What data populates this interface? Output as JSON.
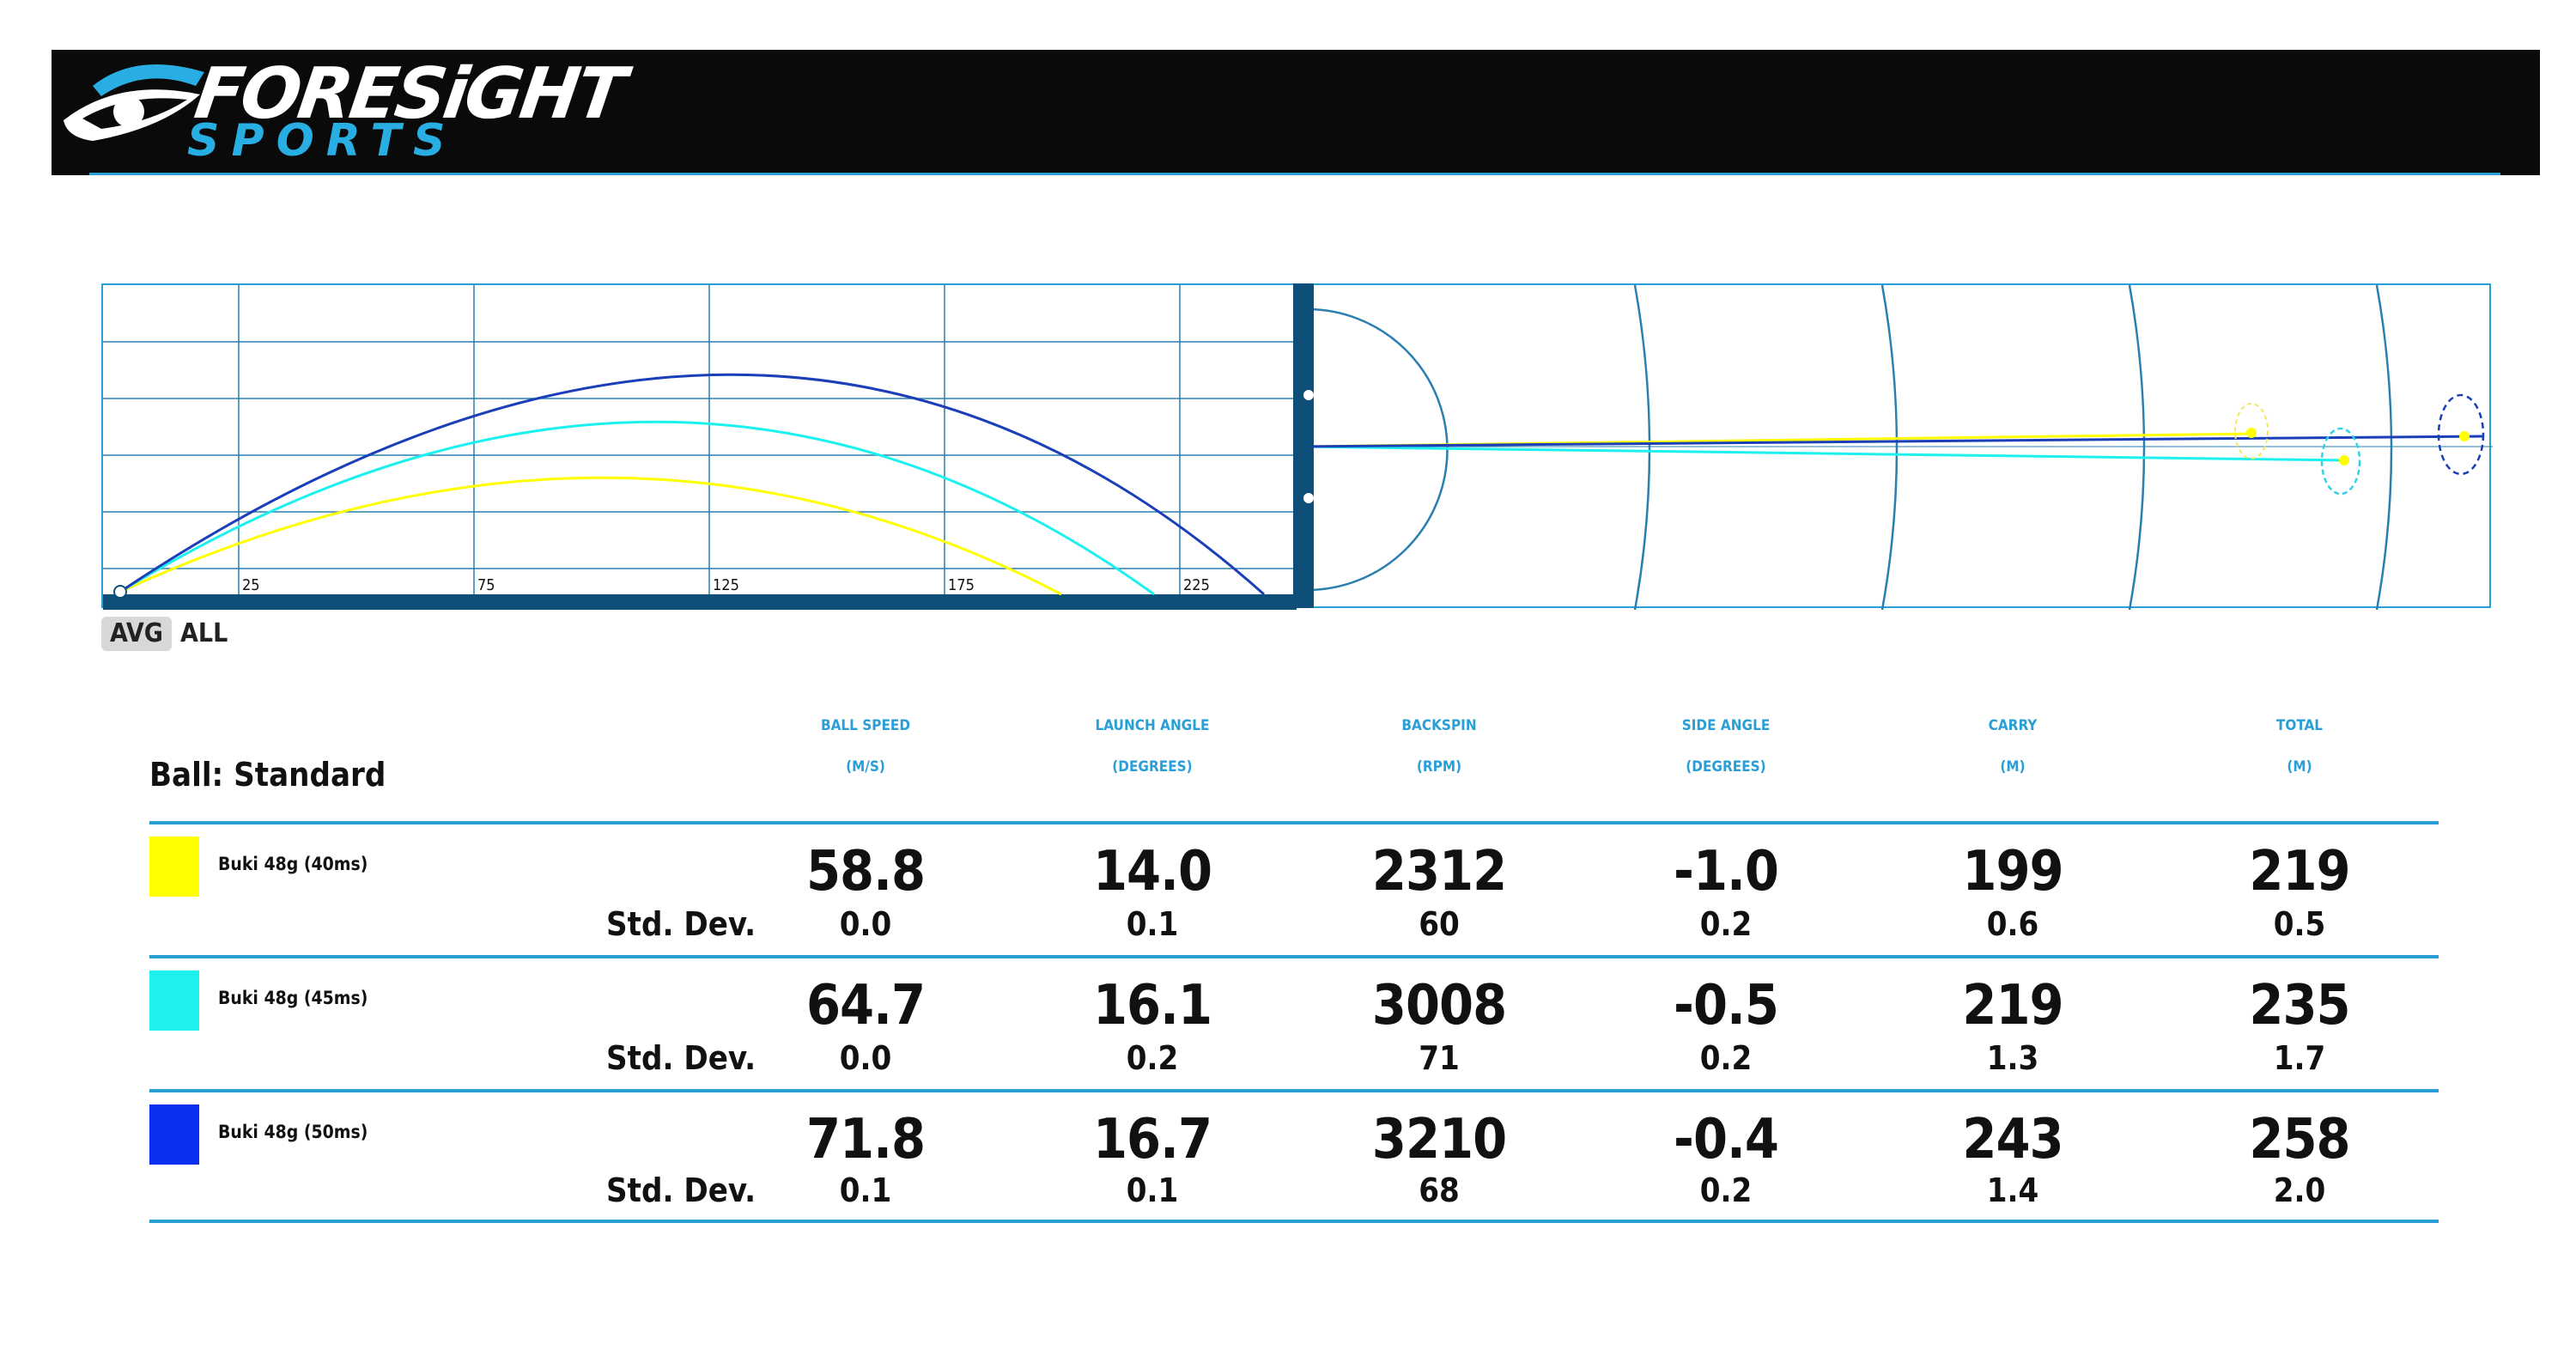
{
  "brand": {
    "name_line1": "FORESiGHT",
    "name_line2": "SPORTS",
    "accent": "#2a9fd6"
  },
  "trajectory": {
    "tick_labels": [
      "25",
      "75",
      "125",
      "175",
      "225"
    ]
  },
  "view_toggle": {
    "avg": "AVG",
    "all": "ALL",
    "selected": "AVG"
  },
  "table": {
    "ball_label": "Ball: Standard",
    "std_dev_label": "Std. Dev.",
    "columns": [
      {
        "name": "BALL SPEED",
        "unit": "(M/S)"
      },
      {
        "name": "LAUNCH ANGLE",
        "unit": "(DEGREES)"
      },
      {
        "name": "BACKSPIN",
        "unit": "(RPM)"
      },
      {
        "name": "SIDE ANGLE",
        "unit": "(DEGREES)"
      },
      {
        "name": "CARRY",
        "unit": "(M)"
      },
      {
        "name": "TOTAL",
        "unit": "(M)"
      }
    ],
    "rows": [
      {
        "club": "Buki 48g (40ms)",
        "color": "#ffff00",
        "values": [
          "58.8",
          "14.0",
          "2312",
          "-1.0",
          "199",
          "219"
        ],
        "std": [
          "0.0",
          "0.1",
          "60",
          "0.2",
          "0.6",
          "0.5"
        ]
      },
      {
        "club": "Buki 48g (45ms)",
        "color": "#1ef0f0",
        "values": [
          "64.7",
          "16.1",
          "3008",
          "-0.5",
          "219",
          "235"
        ],
        "std": [
          "0.0",
          "0.2",
          "71",
          "0.2",
          "1.3",
          "1.7"
        ]
      },
      {
        "club": "Buki 48g (50ms)",
        "color": "#0a2ff0",
        "values": [
          "71.8",
          "16.7",
          "3210",
          "-0.4",
          "243",
          "258"
        ],
        "std": [
          "0.1",
          "0.1",
          "68",
          "0.2",
          "1.4",
          "2.0"
        ]
      }
    ]
  }
}
